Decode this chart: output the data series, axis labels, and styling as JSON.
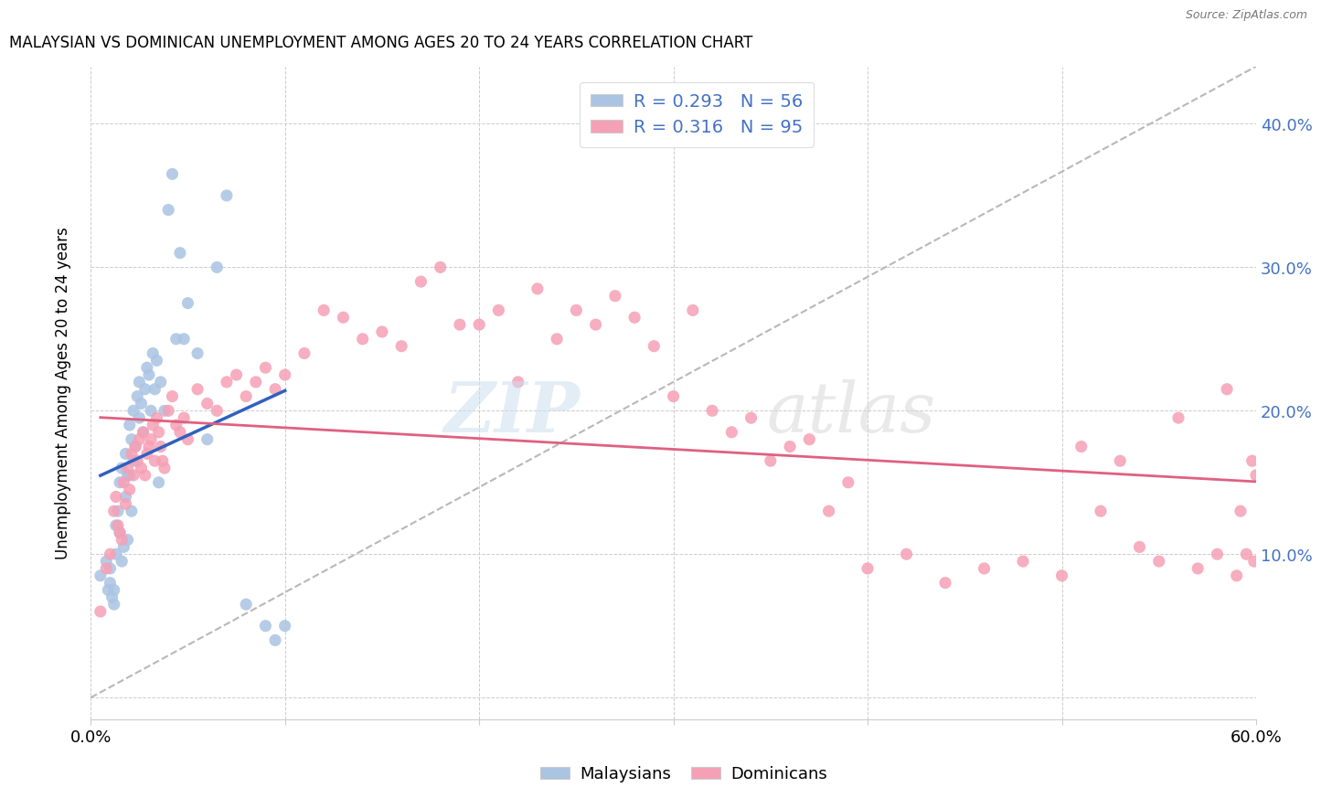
{
  "title": "MALAYSIAN VS DOMINICAN UNEMPLOYMENT AMONG AGES 20 TO 24 YEARS CORRELATION CHART",
  "source": "Source: ZipAtlas.com",
  "ylabel": "Unemployment Among Ages 20 to 24 years",
  "xlim": [
    0.0,
    0.6
  ],
  "ylim": [
    -0.015,
    0.44
  ],
  "yticks": [
    0.0,
    0.1,
    0.2,
    0.3,
    0.4
  ],
  "ytick_labels": [
    "",
    "10.0%",
    "20.0%",
    "30.0%",
    "40.0%"
  ],
  "malaysian_color": "#aac4e2",
  "dominican_color": "#f5a0b5",
  "trendline_malaysian_color": "#3060c0",
  "trendline_dominican_color": "#e06080",
  "trendline_dashed_color": "#b8b8b8",
  "malaysians_x": [
    0.005,
    0.008,
    0.009,
    0.01,
    0.01,
    0.011,
    0.012,
    0.012,
    0.013,
    0.013,
    0.014,
    0.015,
    0.015,
    0.016,
    0.016,
    0.017,
    0.018,
    0.018,
    0.019,
    0.019,
    0.02,
    0.02,
    0.021,
    0.021,
    0.022,
    0.022,
    0.023,
    0.024,
    0.025,
    0.025,
    0.026,
    0.027,
    0.028,
    0.029,
    0.03,
    0.031,
    0.032,
    0.033,
    0.034,
    0.035,
    0.036,
    0.038,
    0.04,
    0.042,
    0.044,
    0.046,
    0.048,
    0.05,
    0.055,
    0.06,
    0.065,
    0.07,
    0.08,
    0.09,
    0.095,
    0.1
  ],
  "malaysians_y": [
    0.085,
    0.095,
    0.075,
    0.09,
    0.08,
    0.07,
    0.075,
    0.065,
    0.12,
    0.1,
    0.13,
    0.15,
    0.115,
    0.16,
    0.095,
    0.105,
    0.14,
    0.17,
    0.155,
    0.11,
    0.155,
    0.19,
    0.18,
    0.13,
    0.2,
    0.165,
    0.175,
    0.21,
    0.195,
    0.22,
    0.205,
    0.185,
    0.215,
    0.23,
    0.225,
    0.2,
    0.24,
    0.215,
    0.235,
    0.15,
    0.22,
    0.2,
    0.34,
    0.365,
    0.25,
    0.31,
    0.25,
    0.275,
    0.24,
    0.18,
    0.3,
    0.35,
    0.065,
    0.05,
    0.04,
    0.05
  ],
  "dominicans_x": [
    0.005,
    0.008,
    0.01,
    0.012,
    0.013,
    0.014,
    0.015,
    0.016,
    0.017,
    0.018,
    0.019,
    0.02,
    0.021,
    0.022,
    0.023,
    0.024,
    0.025,
    0.026,
    0.027,
    0.028,
    0.029,
    0.03,
    0.031,
    0.032,
    0.033,
    0.034,
    0.035,
    0.036,
    0.037,
    0.038,
    0.04,
    0.042,
    0.044,
    0.046,
    0.048,
    0.05,
    0.055,
    0.06,
    0.065,
    0.07,
    0.075,
    0.08,
    0.085,
    0.09,
    0.095,
    0.1,
    0.11,
    0.12,
    0.13,
    0.14,
    0.15,
    0.16,
    0.17,
    0.18,
    0.19,
    0.2,
    0.21,
    0.22,
    0.23,
    0.24,
    0.25,
    0.26,
    0.27,
    0.28,
    0.29,
    0.3,
    0.31,
    0.32,
    0.33,
    0.34,
    0.35,
    0.36,
    0.37,
    0.38,
    0.39,
    0.4,
    0.42,
    0.44,
    0.46,
    0.48,
    0.5,
    0.51,
    0.52,
    0.53,
    0.54,
    0.55,
    0.56,
    0.57,
    0.58,
    0.585,
    0.59,
    0.592,
    0.595,
    0.598,
    0.599,
    0.6
  ],
  "dominicans_y": [
    0.06,
    0.09,
    0.1,
    0.13,
    0.14,
    0.12,
    0.115,
    0.11,
    0.15,
    0.135,
    0.16,
    0.145,
    0.17,
    0.155,
    0.175,
    0.165,
    0.18,
    0.16,
    0.185,
    0.155,
    0.17,
    0.175,
    0.18,
    0.19,
    0.165,
    0.195,
    0.185,
    0.175,
    0.165,
    0.16,
    0.2,
    0.21,
    0.19,
    0.185,
    0.195,
    0.18,
    0.215,
    0.205,
    0.2,
    0.22,
    0.225,
    0.21,
    0.22,
    0.23,
    0.215,
    0.225,
    0.24,
    0.27,
    0.265,
    0.25,
    0.255,
    0.245,
    0.29,
    0.3,
    0.26,
    0.26,
    0.27,
    0.22,
    0.285,
    0.25,
    0.27,
    0.26,
    0.28,
    0.265,
    0.245,
    0.21,
    0.27,
    0.2,
    0.185,
    0.195,
    0.165,
    0.175,
    0.18,
    0.13,
    0.15,
    0.09,
    0.1,
    0.08,
    0.09,
    0.095,
    0.085,
    0.175,
    0.13,
    0.165,
    0.105,
    0.095,
    0.195,
    0.09,
    0.1,
    0.215,
    0.085,
    0.13,
    0.1,
    0.165,
    0.095,
    0.155
  ]
}
